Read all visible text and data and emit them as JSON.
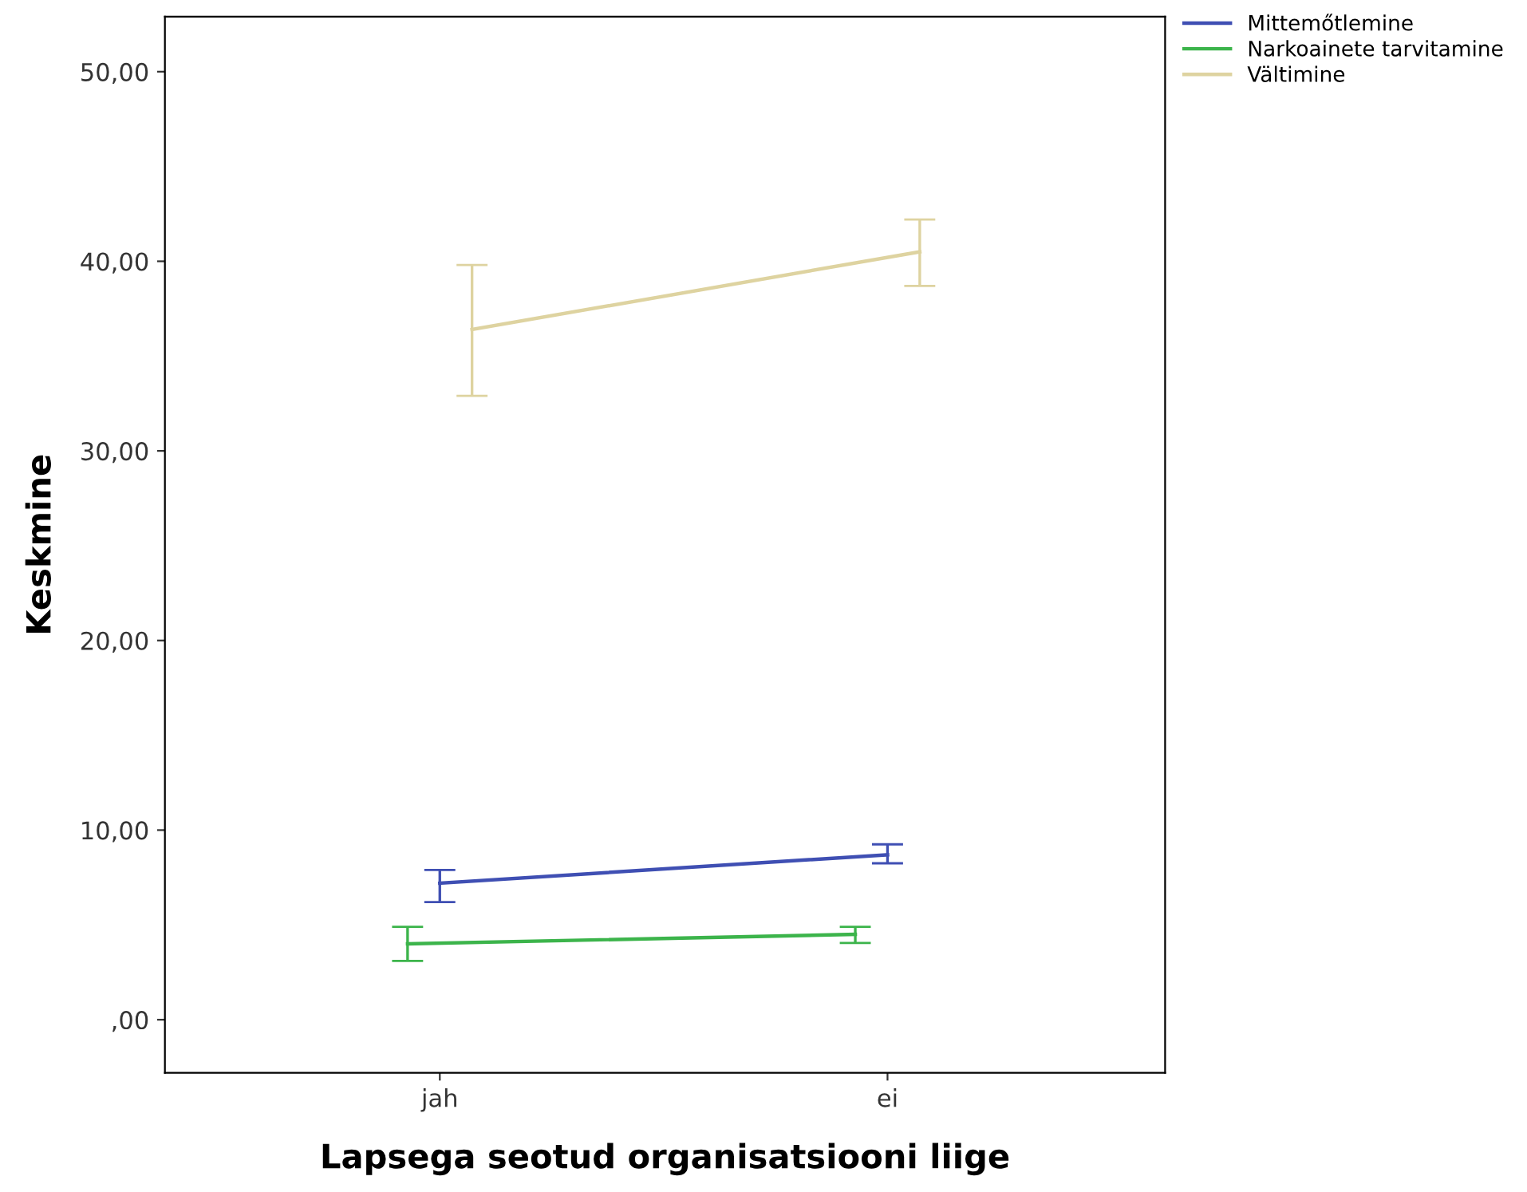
{
  "chart_data": {
    "type": "line",
    "xlabel": "Lapsega seotud organisatsiooni liige",
    "ylabel": "Keskmine",
    "categories": [
      "jah",
      "ei"
    ],
    "series": [
      {
        "name": "Mittemőtlemine",
        "color": "#3f4fb3",
        "values": [
          7.2,
          8.7
        ],
        "errors": [
          [
            6.2,
            7.9
          ],
          [
            8.25,
            9.25
          ]
        ]
      },
      {
        "name": "Narkoainete tarvitamine",
        "color": "#3cb44b",
        "values": [
          4.0,
          4.5
        ],
        "errors": [
          [
            3.1,
            4.9
          ],
          [
            4.05,
            4.9
          ]
        ]
      },
      {
        "name": "Vältimine",
        "color": "#ded3a0",
        "values": [
          36.4,
          40.5
        ],
        "errors": [
          [
            32.9,
            39.8
          ],
          [
            38.7,
            42.2
          ]
        ]
      }
    ],
    "ylim": [
      -2.8,
      52.9
    ],
    "yticks": [
      {
        "value": 0,
        "label": ",00"
      },
      {
        "value": 10,
        "label": "10,00"
      },
      {
        "value": 20,
        "label": "20,00"
      },
      {
        "value": 30,
        "label": "30,00"
      },
      {
        "value": 40,
        "label": "40,00"
      },
      {
        "value": 50,
        "label": "50,00"
      }
    ],
    "legend": "top right",
    "grid": false,
    "marker": "none",
    "line_style": "solid"
  }
}
